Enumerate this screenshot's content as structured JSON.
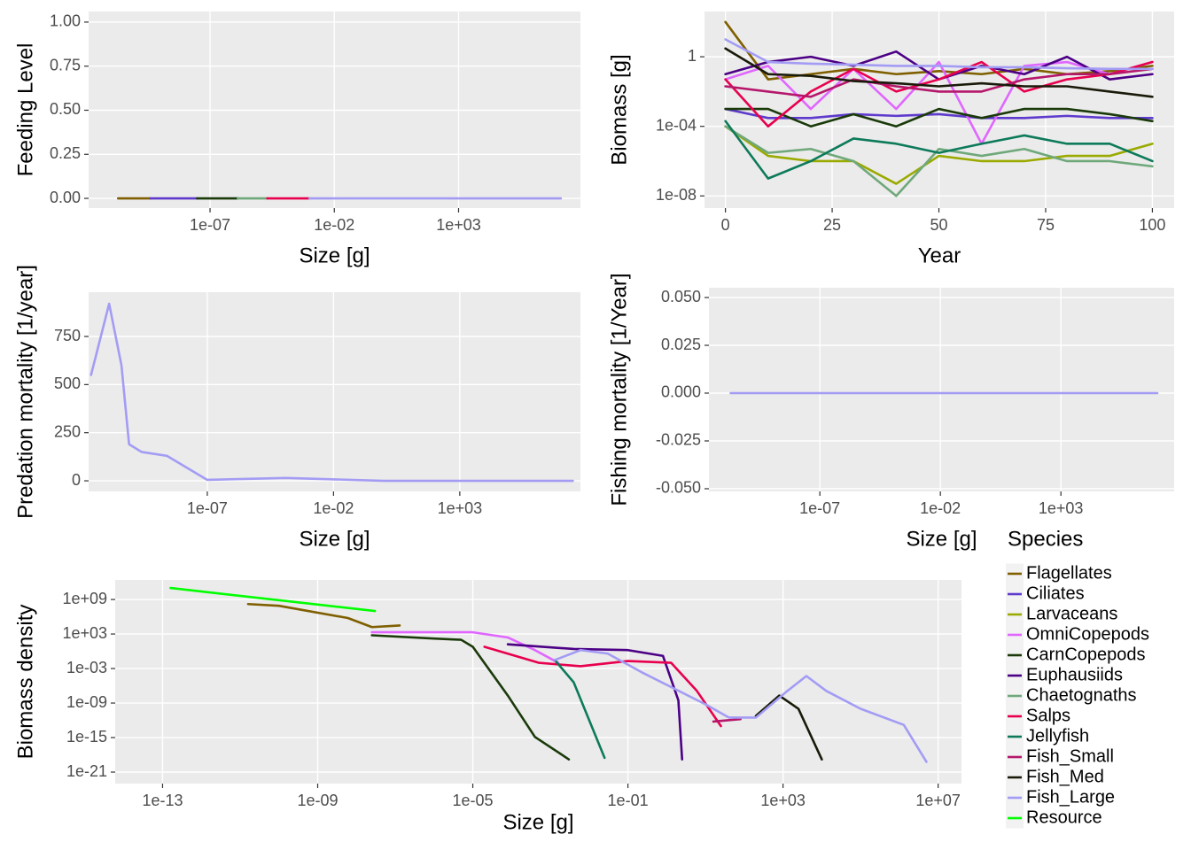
{
  "chart_data": [
    {
      "type": "line",
      "xlabel": "Size [g]",
      "ylabel": "Feeding Level",
      "xlog": true,
      "grid": true,
      "xlim": [
        1.3e-12,
        80000000.0
      ],
      "ylim": [
        -0.055,
        1.06
      ],
      "xticks": [
        {
          "value": 1e-07,
          "label": "1e-07"
        },
        {
          "value": 0.01,
          "label": "1e-02"
        },
        {
          "value": 1000.0,
          "label": "1e+03"
        }
      ],
      "yticks": [
        {
          "value": 0,
          "label": "0.00"
        },
        {
          "value": 0.25,
          "label": "0.25"
        },
        {
          "value": 0.5,
          "label": "0.50"
        },
        {
          "value": 0.75,
          "label": "0.75"
        },
        {
          "value": 1,
          "label": "1.00"
        }
      ],
      "series": [
        {
          "color": "#7f5f00",
          "x": [
            2e-11,
            4e-10
          ],
          "values": [
            0,
            0
          ]
        },
        {
          "color": "#5e3acd",
          "x": [
            4e-10,
            3e-08
          ],
          "values": [
            0,
            0
          ]
        },
        {
          "color": "#1a3a0a",
          "x": [
            3e-08,
            1.3e-06
          ],
          "values": [
            0,
            0
          ]
        },
        {
          "color": "#6fa87a",
          "x": [
            1.3e-06,
            2e-05
          ],
          "values": [
            0,
            0
          ]
        },
        {
          "color": "#e8004f",
          "x": [
            2e-05,
            0.001
          ],
          "values": [
            0,
            0
          ]
        },
        {
          "color": "#a39cf4",
          "x": [
            0.001,
            13000000.0
          ],
          "values": [
            0,
            0
          ]
        }
      ]
    },
    {
      "type": "line",
      "xlabel": "Year",
      "ylabel": "Biomass [g]",
      "ylog": true,
      "grid": true,
      "xlim": [
        -4.9,
        105.1
      ],
      "ylim": [
        2e-09,
        400
      ],
      "xticks": [
        0,
        25,
        50,
        75,
        100
      ],
      "yticks": [
        {
          "value": 1e-08,
          "label": "1e-08"
        },
        {
          "value": 0.0001,
          "label": "1e-04"
        },
        1
      ],
      "x": [
        0,
        10,
        20,
        30,
        40,
        50,
        60,
        70,
        80,
        90,
        100
      ],
      "series": [
        {
          "color": "#7f5f00",
          "values": [
            100,
            0.05,
            0.1,
            0.2,
            0.1,
            0.15,
            0.1,
            0.2,
            0.1,
            0.15,
            0.3
          ]
        },
        {
          "color": "#5e3acd",
          "values": [
            0.001,
            0.0003,
            0.0003,
            0.0005,
            0.0004,
            0.0005,
            0.0003,
            0.0003,
            0.0004,
            0.0003,
            0.0003
          ]
        },
        {
          "color": "#9aaa00",
          "values": [
            0.0001,
            2e-06,
            1e-06,
            1e-06,
            5e-08,
            2e-06,
            1e-06,
            1e-06,
            2e-06,
            2e-06,
            1e-05
          ]
        },
        {
          "color": "#e066ff",
          "values": [
            0.05,
            0.3,
            0.001,
            0.2,
            0.001,
            0.5,
            1e-05,
            0.3,
            0.5,
            0.1,
            0.5
          ]
        },
        {
          "color": "#1a3a0a",
          "values": [
            0.001,
            0.001,
            0.0001,
            0.0005,
            0.0001,
            0.001,
            0.0003,
            0.001,
            0.001,
            0.0005,
            0.0002
          ]
        },
        {
          "color": "#4c0085",
          "values": [
            0.1,
            0.5,
            1,
            0.3,
            2,
            0.05,
            0.3,
            0.1,
            1,
            0.05,
            0.1
          ]
        },
        {
          "color": "#6fa87a",
          "values": [
            0.0001,
            3e-06,
            5e-06,
            1e-06,
            1e-08,
            5e-06,
            2e-06,
            5e-06,
            1e-06,
            1e-06,
            5e-07
          ]
        },
        {
          "color": "#e8004f",
          "values": [
            0.05,
            0.0001,
            0.01,
            0.2,
            0.01,
            0.05,
            0.5,
            0.01,
            0.05,
            0.1,
            0.5
          ]
        },
        {
          "color": "#0d7a5a",
          "values": [
            0.0002,
            1e-07,
            1e-06,
            2e-05,
            1e-05,
            3e-06,
            1e-05,
            3e-05,
            1e-05,
            1e-05,
            1e-06
          ]
        },
        {
          "color": "#b5176b",
          "values": [
            0.02,
            0.01,
            0.005,
            0.05,
            0.02,
            0.01,
            0.01,
            0.05,
            0.1,
            0.1,
            0.2
          ]
        },
        {
          "color": "#1a1a0a",
          "values": [
            3,
            0.1,
            0.08,
            0.04,
            0.03,
            0.02,
            0.03,
            0.02,
            0.02,
            0.01,
            0.005
          ]
        },
        {
          "color": "#a39cf4",
          "values": [
            10,
            0.5,
            0.4,
            0.35,
            0.3,
            0.3,
            0.25,
            0.25,
            0.22,
            0.2,
            0.2
          ]
        }
      ]
    },
    {
      "type": "line",
      "xlabel": "Size [g]",
      "ylabel": "Predation mortality [1/year]",
      "xlog": true,
      "grid": true,
      "xlim": [
        2e-12,
        60000000.0
      ],
      "ylim": [
        -55,
        980
      ],
      "xticks": [
        {
          "value": 1e-07,
          "label": "1e-07"
        },
        {
          "value": 0.01,
          "label": "1e-02"
        },
        {
          "value": 1000.0,
          "label": "1e+03"
        }
      ],
      "yticks": [
        0,
        250,
        500,
        750
      ],
      "series": [
        {
          "color": "#a39cf4",
          "x": [
            2.5e-12,
            1.3e-11,
            4e-11,
            8e-11,
            2.5e-10,
            2.5e-09,
            1e-07,
            0.00013,
            1,
            30000000.0
          ],
          "values": [
            550,
            920,
            600,
            190,
            150,
            130,
            5,
            15,
            0,
            0
          ]
        }
      ]
    },
    {
      "type": "line",
      "xlabel": "Size [g]",
      "ylabel": "Fishing mortality [1/Year]",
      "xlog": true,
      "grid": true,
      "xlim": [
        2.5e-12,
        50000000.0
      ],
      "ylim": [
        -0.0514,
        0.0551
      ],
      "xticks": [
        {
          "value": 1e-07,
          "label": "1e-07"
        },
        {
          "value": 0.01,
          "label": "1e-02"
        },
        {
          "value": 1000.0,
          "label": "1e+03"
        }
      ],
      "yticks": [
        {
          "value": -0.05,
          "label": "-0.050"
        },
        {
          "value": -0.025,
          "label": "-0.025"
        },
        {
          "value": 0,
          "label": "0.000"
        },
        {
          "value": 0.025,
          "label": "0.025"
        },
        {
          "value": 0.05,
          "label": "0.050"
        }
      ],
      "series": [
        {
          "color": "#a39cf4",
          "x": [
            2e-11,
            10000000.0
          ],
          "values": [
            0,
            0
          ]
        }
      ]
    },
    {
      "type": "line",
      "xlabel": "Size [g]",
      "ylabel": "Biomass density",
      "xlog": true,
      "ylog": true,
      "grid": true,
      "xlim": [
        6e-15,
        40000000.0
      ],
      "ylim": [
        1e-23,
        2500000000000.0
      ],
      "xticks": [
        {
          "value": 1e-13,
          "label": "1e-13"
        },
        {
          "value": 1e-09,
          "label": "1e-09"
        },
        {
          "value": 1e-05,
          "label": "1e-05"
        },
        {
          "value": 0.1,
          "label": "1e-01"
        },
        {
          "value": 1000,
          "label": "1e+03"
        },
        {
          "value": 10000000.0,
          "label": "1e+07"
        }
      ],
      "yticks": [
        {
          "value": 1e-21,
          "label": "1e-21"
        },
        {
          "value": 1e-15,
          "label": "1e-15"
        },
        {
          "value": 1e-09,
          "label": "1e-09"
        },
        {
          "value": 0.001,
          "label": "1e-03"
        },
        {
          "value": 1000,
          "label": "1e+03"
        },
        {
          "value": 1000000000.0,
          "label": "1e+09"
        }
      ],
      "legend": {
        "title": "Species"
      },
      "series": [
        {
          "name": "Flagellates",
          "color": "#7f5f00",
          "x": [
            1.6e-11,
            1e-10,
            6e-09,
            2.5e-08,
            1.3e-07
          ],
          "values": [
            160000000.0,
            80000000.0,
            600000.0,
            16000.0,
            30000.0
          ]
        },
        {
          "name": "Ciliates",
          "color": "#5e3acd",
          "x": [],
          "values": []
        },
        {
          "name": "Larvaceans",
          "color": "#9aaa00",
          "x": [],
          "values": []
        },
        {
          "name": "OmniCopepods",
          "color": "#e066ff",
          "x": [
            2.5e-08,
            1e-05,
            8e-05,
            0.0004,
            0.0016
          ],
          "values": [
            2000,
            2000,
            250,
            1.6,
            0.01
          ]
        },
        {
          "name": "CarnCopepods",
          "color": "#1a3a0a",
          "x": [
            2.5e-08,
            1e-06,
            5e-06,
            1e-05,
            8e-05,
            0.0004,
            0.003
          ],
          "values": [
            600,
            160,
            100,
            6,
            2e-08,
            1.3e-15,
            1.6e-19
          ]
        },
        {
          "name": "Euphausiids",
          "color": "#4c0085",
          "x": [
            8e-05,
            0.004,
            0.1,
            0.8,
            2,
            2.5
          ],
          "values": [
            16,
            2.5,
            1.6,
            0.16,
            3e-09,
            1.6e-19
          ]
        },
        {
          "name": "Chaetognaths",
          "color": "#6fa87a",
          "x": [],
          "values": []
        },
        {
          "name": "Salps",
          "color": "#e8004f",
          "x": [
            2e-05,
            0.0005,
            0.006,
            0.1,
            1.3,
            6,
            25
          ],
          "values": [
            6,
            0.01,
            0.0025,
            0.02,
            0.01,
            1.3e-07,
            1e-13
          ]
        },
        {
          "name": "Jellyfish",
          "color": "#0d7a5a",
          "x": [
            0.0013,
            0.004,
            0.025
          ],
          "values": [
            0.03,
            4e-06,
            3e-19
          ]
        },
        {
          "name": "Fish_Small",
          "color": "#b5176b",
          "x": [
            16,
            80
          ],
          "values": [
            6e-13,
            1.6e-12
          ]
        },
        {
          "name": "Fish_Med",
          "color": "#1a1a0a",
          "x": [
            200,
            800,
            2500,
            10000.0
          ],
          "values": [
            6e-12,
            2e-08,
            1e-10,
            1.6e-19
          ]
        },
        {
          "name": "Fish_Large",
          "color": "#a39cf4",
          "x": [
            0.0013,
            0.006,
            0.03,
            0.25,
            10,
            40,
            200,
            1300,
            4000,
            13000.0,
            100000.0,
            1300000.0,
            5000000.0
          ],
          "values": [
            0.03,
            1.6,
            0.4,
            0.00016,
            6e-10,
            3e-12,
            3e-12,
            1.3e-07,
            5e-05,
            1.3e-07,
            1e-10,
            1.6e-13,
            6e-20
          ]
        },
        {
          "name": "Resource",
          "color": "#00ff00",
          "x": [
            1.6e-13,
            3e-08
          ],
          "values": [
            100000000000.0,
            10000000.0
          ]
        }
      ]
    }
  ]
}
